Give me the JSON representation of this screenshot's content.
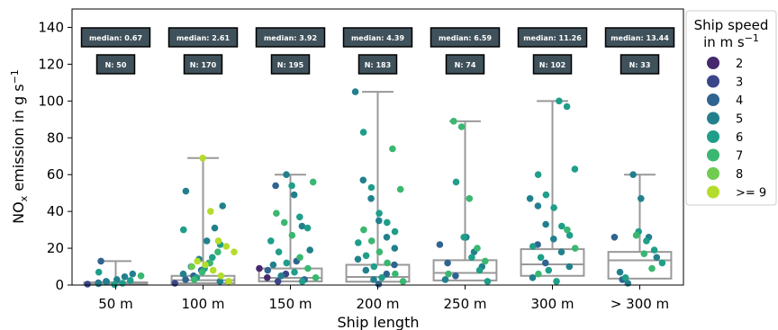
{
  "chart_data": {
    "type": "scatter",
    "xlabel": "Ship length",
    "ylabel": "NO",
    "ylabel_sub": "x",
    "ylabel_rest": " emission in g s",
    "ylabel_sup": "−1",
    "ylim": [
      0,
      150
    ],
    "yticks": [
      "0",
      "20",
      "40",
      "60",
      "80",
      "100",
      "120",
      "140"
    ],
    "ytick_values": [
      0,
      20,
      40,
      60,
      80,
      100,
      120,
      140
    ],
    "categories": [
      "50 m",
      "100 m",
      "150 m",
      "200 m",
      "250 m",
      "300 m",
      "> 300 m"
    ],
    "annotations": {
      "median": [
        "median: 0.67",
        "median: 2.61",
        "median: 3.92",
        "median: 4.39",
        "median: 6.59",
        "median: 11.26",
        "median: 13.44"
      ],
      "n": [
        "N: 50",
        "N: 170",
        "N: 195",
        "N: 183",
        "N: 74",
        "N: 102",
        "N: 33"
      ]
    },
    "boxes": [
      {
        "q1": 0.2,
        "median": 0.67,
        "q3": 1.5,
        "whisker_high": 13
      },
      {
        "q1": 1.0,
        "median": 2.61,
        "q3": 5.0,
        "whisker_high": 69
      },
      {
        "q1": 2.0,
        "median": 3.92,
        "q3": 9.0,
        "whisker_high": 60
      },
      {
        "q1": 1.8,
        "median": 4.39,
        "q3": 11.0,
        "whisker_high": 105
      },
      {
        "q1": 2.5,
        "median": 6.59,
        "q3": 13.5,
        "whisker_high": 89
      },
      {
        "q1": 5.0,
        "median": 11.26,
        "q3": 19.5,
        "whisker_high": 100
      },
      {
        "q1": 3.5,
        "median": 13.44,
        "q3": 18.0,
        "whisker_high": 60
      }
    ],
    "legend": {
      "title_line1": "Ship speed",
      "title_line2": "in m s",
      "title_sup": "−1",
      "placement": "right-outside",
      "entries": [
        {
          "label": "2",
          "color": "#46296d"
        },
        {
          "label": "3",
          "color": "#3b4589"
        },
        {
          "label": "4",
          "color": "#2f6490"
        },
        {
          "label": "5",
          "color": "#22808d"
        },
        {
          "label": "6",
          "color": "#1f9e89"
        },
        {
          "label": "7",
          "color": "#3ab770"
        },
        {
          "label": "8",
          "color": "#6fcb51"
        },
        {
          "label": ">= 9",
          "color": "#b4dc2b"
        }
      ]
    },
    "colors": {
      "box": "#999999",
      "annotation_bg": "#3f515b",
      "annotation_border": "#000000"
    },
    "points": [
      [
        {
          "v": 0.5,
          "s": 3
        },
        {
          "v": 1.2,
          "s": 4
        },
        {
          "v": 2.0,
          "s": 4
        },
        {
          "v": 3.0,
          "s": 5
        },
        {
          "v": 4.5,
          "s": 5
        },
        {
          "v": 6.0,
          "s": 5
        },
        {
          "v": 7.0,
          "s": 6
        },
        {
          "v": 13.0,
          "s": 4
        },
        {
          "v": 0.3,
          "s": 6
        },
        {
          "v": 1.0,
          "s": 6
        },
        {
          "v": 2.5,
          "s": 6
        },
        {
          "v": 5.0,
          "s": 7
        },
        {
          "v": 0.8,
          "s": 5
        },
        {
          "v": 1.8,
          "s": 5
        }
      ],
      [
        {
          "v": 1.0,
          "s": 3
        },
        {
          "v": 3.0,
          "s": 4
        },
        {
          "v": 5.0,
          "s": 4
        },
        {
          "v": 8.0,
          "s": 4
        },
        {
          "v": 12.0,
          "s": 4
        },
        {
          "v": 2.0,
          "s": 5
        },
        {
          "v": 6.0,
          "s": 5
        },
        {
          "v": 10.0,
          "s": 5
        },
        {
          "v": 14.0,
          "s": 5
        },
        {
          "v": 24.0,
          "s": 5
        },
        {
          "v": 31.0,
          "s": 5
        },
        {
          "v": 43.0,
          "s": 5
        },
        {
          "v": 51.0,
          "s": 5
        },
        {
          "v": 4.0,
          "s": 6
        },
        {
          "v": 9.0,
          "s": 6
        },
        {
          "v": 15.0,
          "s": 6
        },
        {
          "v": 22.0,
          "s": 6
        },
        {
          "v": 30.0,
          "s": 6
        },
        {
          "v": 3.0,
          "s": 7
        },
        {
          "v": 7.0,
          "s": 7
        },
        {
          "v": 12.0,
          "s": 7
        },
        {
          "v": 18.0,
          "s": 7
        },
        {
          "v": 2.0,
          "s": 8
        },
        {
          "v": 10.0,
          "s": 8
        },
        {
          "v": 69.0,
          "s": 9
        },
        {
          "v": 40.0,
          "s": 9
        },
        {
          "v": 24.0,
          "s": 9
        },
        {
          "v": 21.0,
          "s": 9
        },
        {
          "v": 18.0,
          "s": 9
        },
        {
          "v": 13.0,
          "s": 9
        },
        {
          "v": 11.0,
          "s": 9
        },
        {
          "v": 8.0,
          "s": 9
        },
        {
          "v": 5.0,
          "s": 9
        },
        {
          "v": 2.0,
          "s": 9
        }
      ],
      [
        {
          "v": 9.0,
          "s": 2
        },
        {
          "v": 4.0,
          "s": 2
        },
        {
          "v": 2.0,
          "s": 3
        },
        {
          "v": 6.0,
          "s": 3
        },
        {
          "v": 13.0,
          "s": 4
        },
        {
          "v": 3.0,
          "s": 4
        },
        {
          "v": 8.0,
          "s": 4
        },
        {
          "v": 54.0,
          "s": 4
        },
        {
          "v": 60.0,
          "s": 5
        },
        {
          "v": 49.0,
          "s": 5
        },
        {
          "v": 32.0,
          "s": 5
        },
        {
          "v": 19.0,
          "s": 5
        },
        {
          "v": 11.0,
          "s": 5
        },
        {
          "v": 5.0,
          "s": 5
        },
        {
          "v": 54.0,
          "s": 6
        },
        {
          "v": 37.0,
          "s": 6
        },
        {
          "v": 31.0,
          "s": 6
        },
        {
          "v": 24.0,
          "s": 6
        },
        {
          "v": 18.0,
          "s": 6
        },
        {
          "v": 12.0,
          "s": 6
        },
        {
          "v": 7.0,
          "s": 6
        },
        {
          "v": 2.0,
          "s": 6
        },
        {
          "v": 56.0,
          "s": 7
        },
        {
          "v": 39.0,
          "s": 7
        },
        {
          "v": 34.0,
          "s": 7
        },
        {
          "v": 27.0,
          "s": 7
        },
        {
          "v": 15.0,
          "s": 7
        },
        {
          "v": 9.0,
          "s": 7
        },
        {
          "v": 4.0,
          "s": 7
        }
      ],
      [
        {
          "v": 105.0,
          "s": 5
        },
        {
          "v": 57.0,
          "s": 5
        },
        {
          "v": 47.0,
          "s": 5
        },
        {
          "v": 35.0,
          "s": 5
        },
        {
          "v": 26.0,
          "s": 5
        },
        {
          "v": 20.0,
          "s": 5
        },
        {
          "v": 14.0,
          "s": 5
        },
        {
          "v": 8.0,
          "s": 5
        },
        {
          "v": 3.0,
          "s": 5
        },
        {
          "v": 0.5,
          "s": 4
        },
        {
          "v": 6.0,
          "s": 4
        },
        {
          "v": 11.0,
          "s": 4
        },
        {
          "v": 83.0,
          "s": 6
        },
        {
          "v": 53.0,
          "s": 6
        },
        {
          "v": 39.0,
          "s": 6
        },
        {
          "v": 34.0,
          "s": 6
        },
        {
          "v": 29.0,
          "s": 6
        },
        {
          "v": 23.0,
          "s": 6
        },
        {
          "v": 16.0,
          "s": 6
        },
        {
          "v": 10.0,
          "s": 6
        },
        {
          "v": 4.0,
          "s": 6
        },
        {
          "v": 74.0,
          "s": 7
        },
        {
          "v": 52.0,
          "s": 7
        },
        {
          "v": 30.0,
          "s": 7
        },
        {
          "v": 24.0,
          "s": 7
        },
        {
          "v": 18.0,
          "s": 7
        },
        {
          "v": 12.0,
          "s": 7
        },
        {
          "v": 6.0,
          "s": 7
        },
        {
          "v": 2.0,
          "s": 7
        }
      ],
      [
        {
          "v": 22.0,
          "s": 4
        },
        {
          "v": 12.0,
          "s": 4
        },
        {
          "v": 5.0,
          "s": 4
        },
        {
          "v": 26.0,
          "s": 5
        },
        {
          "v": 18.0,
          "s": 5
        },
        {
          "v": 10.0,
          "s": 5
        },
        {
          "v": 3.0,
          "s": 5
        },
        {
          "v": 56.0,
          "s": 6
        },
        {
          "v": 26.0,
          "s": 6
        },
        {
          "v": 15.0,
          "s": 6
        },
        {
          "v": 8.0,
          "s": 6
        },
        {
          "v": 2.0,
          "s": 6
        },
        {
          "v": 89.0,
          "s": 7
        },
        {
          "v": 86.0,
          "s": 7
        },
        {
          "v": 47.0,
          "s": 7
        },
        {
          "v": 20.0,
          "s": 7
        },
        {
          "v": 13.0,
          "s": 7
        },
        {
          "v": 6.0,
          "s": 7
        }
      ],
      [
        {
          "v": 47.0,
          "s": 5
        },
        {
          "v": 43.0,
          "s": 5
        },
        {
          "v": 33.0,
          "s": 5
        },
        {
          "v": 25.0,
          "s": 5
        },
        {
          "v": 18.0,
          "s": 5
        },
        {
          "v": 10.0,
          "s": 5
        },
        {
          "v": 4.0,
          "s": 5
        },
        {
          "v": 22.0,
          "s": 4
        },
        {
          "v": 12.0,
          "s": 4
        },
        {
          "v": 100.0,
          "s": 6
        },
        {
          "v": 97.0,
          "s": 6
        },
        {
          "v": 63.0,
          "s": 6
        },
        {
          "v": 60.0,
          "s": 6
        },
        {
          "v": 49.0,
          "s": 6
        },
        {
          "v": 42.0,
          "s": 6
        },
        {
          "v": 32.0,
          "s": 6
        },
        {
          "v": 27.0,
          "s": 6
        },
        {
          "v": 21.0,
          "s": 6
        },
        {
          "v": 15.0,
          "s": 6
        },
        {
          "v": 8.0,
          "s": 6
        },
        {
          "v": 2.0,
          "s": 6
        },
        {
          "v": 30.0,
          "s": 7
        },
        {
          "v": 20.0,
          "s": 7
        },
        {
          "v": 6.0,
          "s": 7
        }
      ],
      [
        {
          "v": 26.0,
          "s": 4
        },
        {
          "v": 3.0,
          "s": 4
        },
        {
          "v": 60.0,
          "s": 5
        },
        {
          "v": 47.0,
          "s": 5
        },
        {
          "v": 26.0,
          "s": 5
        },
        {
          "v": 15.0,
          "s": 5
        },
        {
          "v": 7.0,
          "s": 5
        },
        {
          "v": 1.0,
          "s": 5
        },
        {
          "v": 29.0,
          "s": 6
        },
        {
          "v": 24.0,
          "s": 6
        },
        {
          "v": 19.0,
          "s": 6
        },
        {
          "v": 12.0,
          "s": 6
        },
        {
          "v": 4.0,
          "s": 6
        },
        {
          "v": 27.0,
          "s": 7
        },
        {
          "v": 17.0,
          "s": 7
        },
        {
          "v": 9.0,
          "s": 7
        }
      ]
    ]
  }
}
